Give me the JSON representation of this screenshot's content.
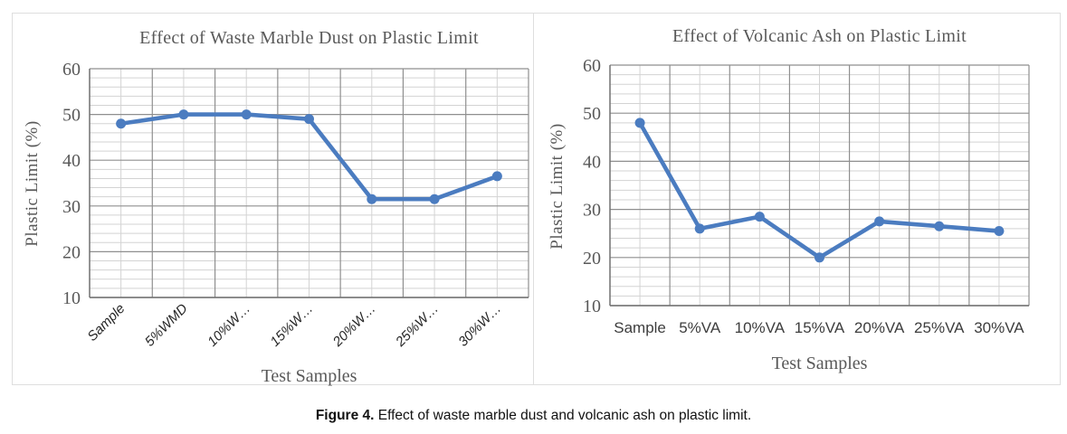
{
  "figure": {
    "caption_label": "Figure 4.",
    "caption_text": " Effect of waste marble dust and volcanic ash on plastic limit."
  },
  "colors": {
    "series": "#4b7cc0",
    "marker": "#4b7cc0",
    "major_grid": "#8f8f8f",
    "minor_grid": "#d3d3d3",
    "axis_line": "#707070",
    "title_text": "#595959",
    "panel_border": "#dedede"
  },
  "chart_data": [
    {
      "type": "line",
      "title": "Effect of Waste Marble Dust on Plastic Limit",
      "xlabel": "Test Samples",
      "ylabel": "Plastic Limit (%)",
      "categories": [
        "Sample",
        "5%WMD",
        "10%W…",
        "15%W…",
        "20%W…",
        "25%W…",
        "30%W…"
      ],
      "values": [
        48,
        50,
        50,
        49,
        31.5,
        31.5,
        36.5
      ],
      "ylim": [
        10,
        60
      ],
      "y_major_step": 10,
      "y_minor_step": 2,
      "grid": "major+minor",
      "legend": false,
      "x_tick_rotation": -45
    },
    {
      "type": "line",
      "title": "Effect of Volcanic Ash on Plastic Limit",
      "xlabel": "Test Samples",
      "ylabel": "Plastic Limit (%)",
      "categories": [
        "Sample",
        "5%VA",
        "10%VA",
        "15%VA",
        "20%VA",
        "25%VA",
        "30%VA"
      ],
      "values": [
        48,
        26,
        28.5,
        20,
        27.5,
        26.5,
        25.5
      ],
      "ylim": [
        10,
        60
      ],
      "y_major_step": 10,
      "y_minor_step": 2,
      "grid": "major+minor",
      "legend": false,
      "x_tick_rotation": 0
    }
  ]
}
